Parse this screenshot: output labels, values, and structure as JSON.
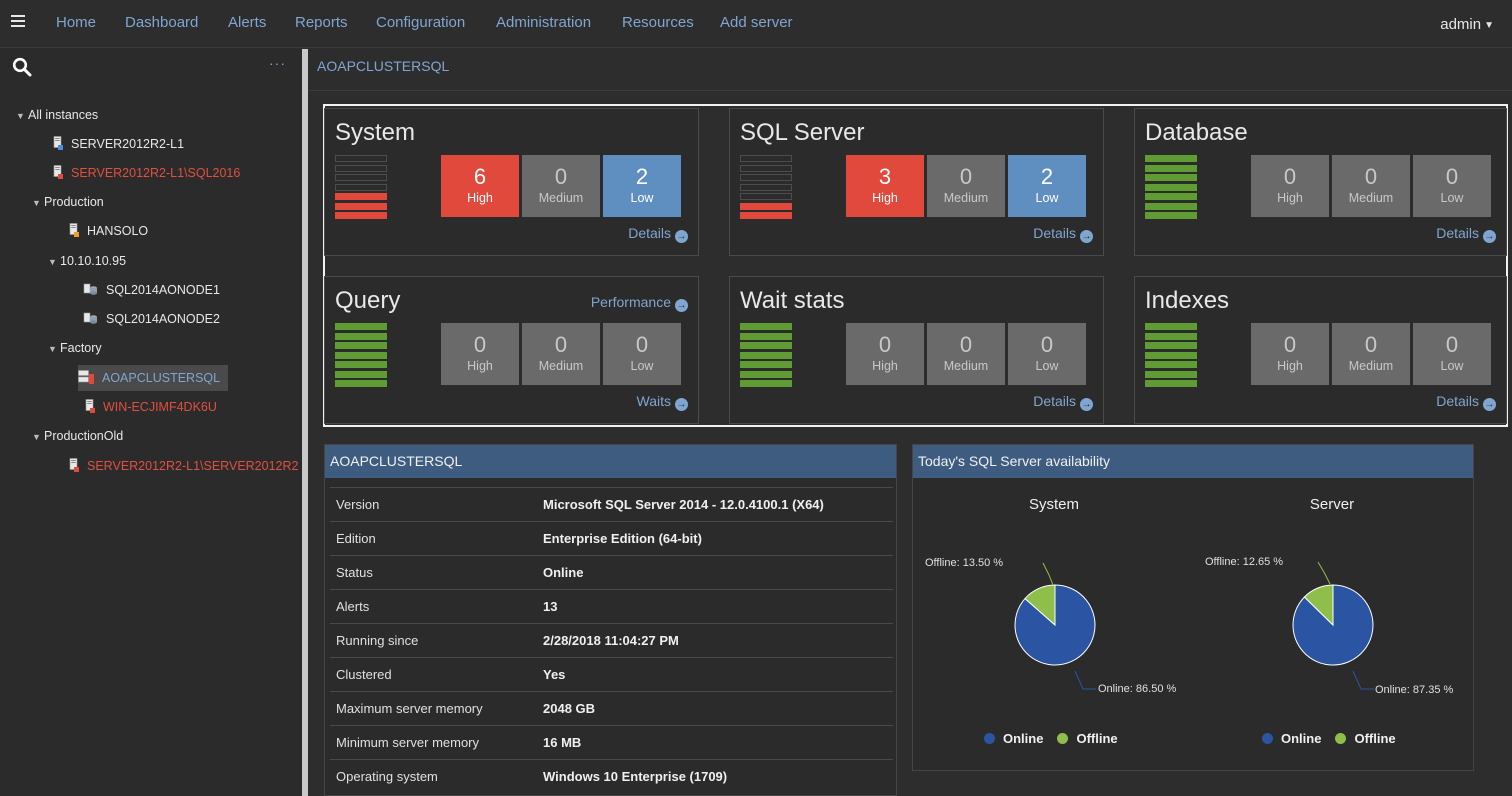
{
  "nav": {
    "items": [
      "Home",
      "Dashboard",
      "Alerts",
      "Reports",
      "Configuration",
      "Administration",
      "Resources",
      "Add server"
    ],
    "user": "admin"
  },
  "sidebar": {
    "tree": [
      {
        "label": "All instances",
        "type": "group",
        "expanded": true
      },
      {
        "label": "SERVER2012R2-L1",
        "type": "server",
        "status": "normal"
      },
      {
        "label": "SERVER2012R2-L1\\SQL2016",
        "type": "server",
        "status": "error"
      },
      {
        "label": "Production",
        "type": "group",
        "expanded": true
      },
      {
        "label": "HANSOLO",
        "type": "server",
        "status": "warning"
      },
      {
        "label": "10.10.10.95",
        "type": "group",
        "expanded": true
      },
      {
        "label": "SQL2014AONODE1",
        "type": "cluster-node"
      },
      {
        "label": "SQL2014AONODE2",
        "type": "cluster-node"
      },
      {
        "label": "Factory",
        "type": "group",
        "expanded": true
      },
      {
        "label": "AOAPCLUSTERSQL",
        "type": "cluster",
        "selected": true
      },
      {
        "label": "WIN-ECJIMF4DK6U",
        "type": "server",
        "status": "error"
      },
      {
        "label": "ProductionOld",
        "type": "group",
        "expanded": true
      },
      {
        "label": "SERVER2012R2-L1\\SERVER2012R2",
        "type": "server",
        "status": "error"
      }
    ]
  },
  "breadcrumb": "AOAPCLUSTERSQL",
  "severity_labels": {
    "high": "High",
    "medium": "Medium",
    "low": "Low"
  },
  "panels": [
    {
      "title": "System",
      "high": "6",
      "medium": "0",
      "low": "2",
      "link": "Details",
      "meter_red": 3,
      "meter_total": 7
    },
    {
      "title": "SQL Server",
      "high": "3",
      "medium": "0",
      "low": "2",
      "link": "Details",
      "meter_red": 2,
      "meter_total": 7
    },
    {
      "title": "Database",
      "high": "0",
      "medium": "0",
      "low": "0",
      "link": "Details",
      "meter_red": 0,
      "meter_total": 7
    },
    {
      "title": "Query",
      "high": "0",
      "medium": "0",
      "low": "0",
      "link": "Waits",
      "extra_link": "Performance",
      "meter_red": 0,
      "meter_total": 7
    },
    {
      "title": "Wait stats",
      "high": "0",
      "medium": "0",
      "low": "0",
      "link": "Details",
      "meter_red": 0,
      "meter_total": 7
    },
    {
      "title": "Indexes",
      "high": "0",
      "medium": "0",
      "low": "0",
      "link": "Details",
      "meter_red": 0,
      "meter_total": 7
    }
  ],
  "info": {
    "title": "AOAPCLUSTERSQL",
    "rows": [
      {
        "key": "Version",
        "value": "Microsoft SQL Server 2014 - 12.0.4100.1 (X64)"
      },
      {
        "key": "Edition",
        "value": "Enterprise Edition (64-bit)"
      },
      {
        "key": "Status",
        "value": "Online"
      },
      {
        "key": "Alerts",
        "value": "13"
      },
      {
        "key": "Running since",
        "value": "2/28/2018 11:04:27 PM"
      },
      {
        "key": "Clustered",
        "value": "Yes"
      },
      {
        "key": "Maximum server memory",
        "value": "2048 GB"
      },
      {
        "key": "Minimum server memory",
        "value": "16 MB"
      },
      {
        "key": "Operating system",
        "value": "Windows 10 Enterprise (1709)"
      }
    ]
  },
  "availability": {
    "title": "Today's SQL Server availability",
    "legend": {
      "online": "Online",
      "offline": "Offline"
    },
    "colors": {
      "online": "#2b55a3",
      "offline": "#8fbe4a"
    }
  },
  "chart_data": [
    {
      "type": "pie",
      "title": "System",
      "categories": [
        "Online",
        "Offline"
      ],
      "values": [
        86.5,
        13.5
      ],
      "labels": [
        "Online: 86.50 %",
        "Offline: 13.50 %"
      ]
    },
    {
      "type": "pie",
      "title": "Server",
      "categories": [
        "Online",
        "Offline"
      ],
      "values": [
        87.35,
        12.65
      ],
      "labels": [
        "Online: 87.35 %",
        "Offline: 12.65 %"
      ]
    }
  ]
}
